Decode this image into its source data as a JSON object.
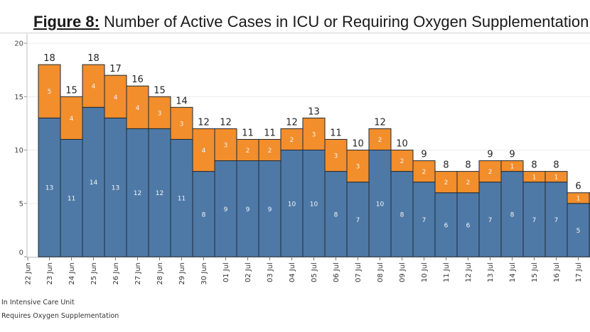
{
  "header": {
    "figure_label": "Figure 8:",
    "title_text": " Number of Active Cases in ICU or Requiring Oxygen Supplementation"
  },
  "colors": {
    "icu": "#4e79a7",
    "oxygen": "#f28e2b",
    "bar_outline": "#1f2a36",
    "total_label": "#222222",
    "inner_label": "#f5f5f5",
    "axis": "#bdbdbd",
    "grid": "#ececec"
  },
  "chart_data": {
    "type": "bar",
    "stacked": true,
    "title": "Figure 8: Number of Active Cases in ICU or Requiring Oxygen Supplementation",
    "xlabel": "",
    "ylabel": "",
    "ylim": [
      0,
      20
    ],
    "yticks": [
      0,
      5,
      10,
      15,
      20
    ],
    "grid": true,
    "x_tick_labels": [
      "22 Jun",
      "23 Jun",
      "24 Jun",
      "25 Jun",
      "26 Jun",
      "27 Jun",
      "28 Jun",
      "29 Jun",
      "30 Jun",
      "01 Jul",
      "02 Jul",
      "03 Jul",
      "04 Jul",
      "05 Jul",
      "06 Jul",
      "07 Jul",
      "08 Jul",
      "09 Jul",
      "10 Jul",
      "11 Jul",
      "12 Jul",
      "13 Jul",
      "14 Jul",
      "15 Jul",
      "16 Jul",
      "17 Jul"
    ],
    "categories": [
      "23 Jun",
      "24 Jun",
      "25 Jun",
      "26 Jun",
      "27 Jun",
      "28 Jun",
      "29 Jun",
      "30 Jun",
      "01 Jul",
      "02 Jul",
      "03 Jul",
      "04 Jul",
      "05 Jul",
      "06 Jul",
      "07 Jul",
      "08 Jul",
      "09 Jul",
      "10 Jul",
      "11 Jul",
      "12 Jul",
      "13 Jul",
      "14 Jul",
      "15 Jul",
      "16 Jul",
      "17 Jul"
    ],
    "series": [
      {
        "name": "In Intensive Care Unit",
        "color": "#4e79a7",
        "values": [
          13,
          11,
          14,
          13,
          12,
          12,
          11,
          8,
          9,
          9,
          9,
          10,
          10,
          8,
          7,
          10,
          8,
          7,
          6,
          6,
          7,
          8,
          7,
          7,
          5
        ]
      },
      {
        "name": "Requires Oxygen Supplementation",
        "color": "#f28e2b",
        "values": [
          5,
          4,
          4,
          4,
          4,
          3,
          3,
          4,
          3,
          2,
          2,
          2,
          3,
          3,
          3,
          2,
          2,
          2,
          2,
          2,
          2,
          1,
          1,
          1,
          1
        ]
      }
    ],
    "totals": [
      18,
      15,
      18,
      17,
      16,
      15,
      14,
      12,
      12,
      11,
      11,
      12,
      13,
      11,
      10,
      12,
      10,
      9,
      8,
      8,
      9,
      9,
      8,
      8,
      6
    ],
    "partial_trailing_bar": {
      "icu": 5,
      "oxygen": 1,
      "note": "cut off at right edge"
    },
    "legend": {
      "position": "bottom-left",
      "entries": [
        "In Intensive Care Unit",
        "Requires Oxygen Supplementation"
      ]
    }
  }
}
